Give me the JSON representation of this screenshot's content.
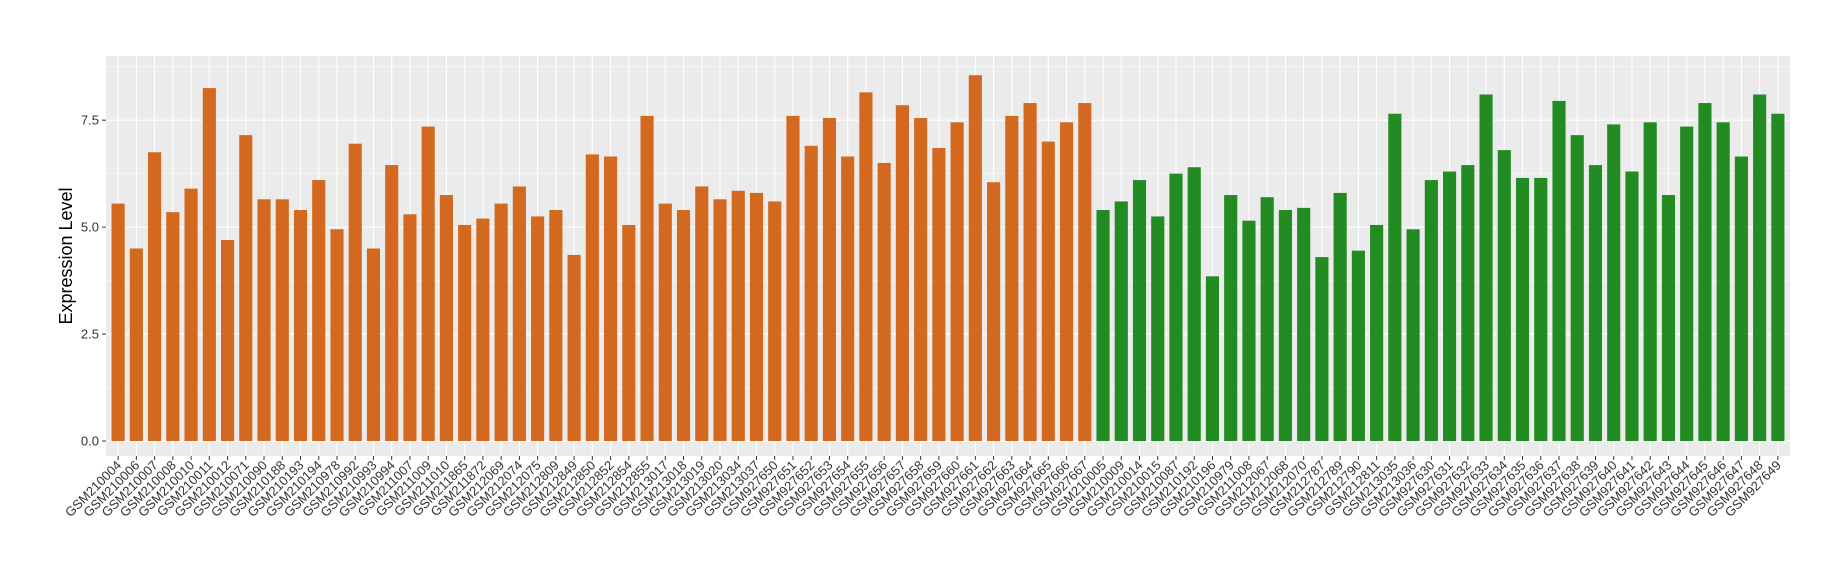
{
  "chart_data": {
    "type": "bar",
    "title": "",
    "xlabel": "",
    "ylabel": "Expression Level",
    "ylim": [
      -0.35,
      9.0
    ],
    "yticks": [
      "0.0",
      "2.5",
      "5.0",
      "7.5"
    ],
    "ytick_values": [
      0,
      2.5,
      5.0,
      7.5
    ],
    "grid": true,
    "legend": "none",
    "colors": {
      "orange": "#D2691E",
      "green": "#228B22",
      "panel": "#EBEBEB",
      "grid": "#FFFFFF"
    },
    "categories": [
      "GSM210004",
      "GSM210006",
      "GSM210007",
      "GSM210008",
      "GSM210010",
      "GSM210011",
      "GSM210012",
      "GSM210071",
      "GSM210090",
      "GSM210188",
      "GSM210193",
      "GSM210194",
      "GSM210978",
      "GSM210992",
      "GSM210993",
      "GSM210994",
      "GSM211007",
      "GSM211009",
      "GSM211010",
      "GSM211865",
      "GSM211872",
      "GSM212069",
      "GSM212074",
      "GSM212075",
      "GSM212809",
      "GSM212849",
      "GSM212850",
      "GSM212852",
      "GSM212854",
      "GSM212855",
      "GSM213017",
      "GSM213018",
      "GSM213019",
      "GSM213020",
      "GSM213034",
      "GSM213037",
      "GSM927650",
      "GSM927651",
      "GSM927652",
      "GSM927653",
      "GSM927654",
      "GSM927655",
      "GSM927656",
      "GSM927657",
      "GSM927658",
      "GSM927659",
      "GSM927660",
      "GSM927661",
      "GSM927662",
      "GSM927663",
      "GSM927664",
      "GSM927665",
      "GSM927666",
      "GSM927667",
      "GSM210005",
      "GSM210009",
      "GSM210014",
      "GSM210015",
      "GSM210087",
      "GSM210192",
      "GSM210196",
      "GSM210979",
      "GSM211008",
      "GSM212067",
      "GSM212068",
      "GSM212070",
      "GSM212787",
      "GSM212789",
      "GSM212790",
      "GSM212811",
      "GSM213035",
      "GSM213036",
      "GSM927630",
      "GSM927631",
      "GSM927632",
      "GSM927633",
      "GSM927634",
      "GSM927635",
      "GSM927636",
      "GSM927637",
      "GSM927638",
      "GSM927639",
      "GSM927640",
      "GSM927641",
      "GSM927642",
      "GSM927643",
      "GSM927644",
      "GSM927645",
      "GSM927646",
      "GSM927647",
      "GSM927648",
      "GSM927649"
    ],
    "values": [
      5.55,
      4.5,
      6.75,
      5.35,
      5.9,
      8.25,
      4.7,
      7.15,
      5.65,
      5.65,
      5.4,
      6.1,
      4.95,
      6.95,
      4.5,
      6.45,
      5.3,
      7.35,
      5.75,
      5.05,
      5.2,
      5.55,
      5.95,
      5.25,
      5.4,
      4.35,
      6.7,
      6.65,
      5.05,
      7.6,
      5.55,
      5.4,
      5.95,
      5.65,
      5.85,
      5.8,
      5.6,
      7.6,
      6.9,
      7.55,
      6.65,
      8.15,
      6.5,
      7.85,
      7.55,
      6.85,
      7.45,
      8.55,
      6.05,
      7.6,
      7.9,
      7.0,
      7.45,
      7.9,
      5.4,
      5.6,
      6.1,
      5.25,
      6.25,
      6.4,
      3.85,
      5.75,
      5.15,
      5.7,
      5.4,
      5.45,
      4.3,
      5.8,
      4.45,
      5.05,
      7.65,
      4.95,
      6.1,
      6.3,
      6.45,
      8.1,
      6.8,
      6.15,
      6.15,
      7.95,
      7.15,
      6.45,
      7.4,
      6.3,
      7.45,
      5.75,
      7.35,
      7.9,
      7.45,
      6.65,
      8.1,
      7.65
    ],
    "groups": [
      "orange",
      "orange",
      "orange",
      "orange",
      "orange",
      "orange",
      "orange",
      "orange",
      "orange",
      "orange",
      "orange",
      "orange",
      "orange",
      "orange",
      "orange",
      "orange",
      "orange",
      "orange",
      "orange",
      "orange",
      "orange",
      "orange",
      "orange",
      "orange",
      "orange",
      "orange",
      "orange",
      "orange",
      "orange",
      "orange",
      "orange",
      "orange",
      "orange",
      "orange",
      "orange",
      "orange",
      "orange",
      "orange",
      "orange",
      "orange",
      "orange",
      "orange",
      "orange",
      "orange",
      "orange",
      "orange",
      "orange",
      "orange",
      "orange",
      "orange",
      "orange",
      "orange",
      "orange",
      "orange",
      "green",
      "green",
      "green",
      "green",
      "green",
      "green",
      "green",
      "green",
      "green",
      "green",
      "green",
      "green",
      "green",
      "green",
      "green",
      "green",
      "green",
      "green",
      "green",
      "green",
      "green",
      "green",
      "green",
      "green",
      "green",
      "green",
      "green",
      "green",
      "green",
      "green",
      "green",
      "green",
      "green",
      "green",
      "green",
      "green",
      "green",
      "green"
    ]
  }
}
